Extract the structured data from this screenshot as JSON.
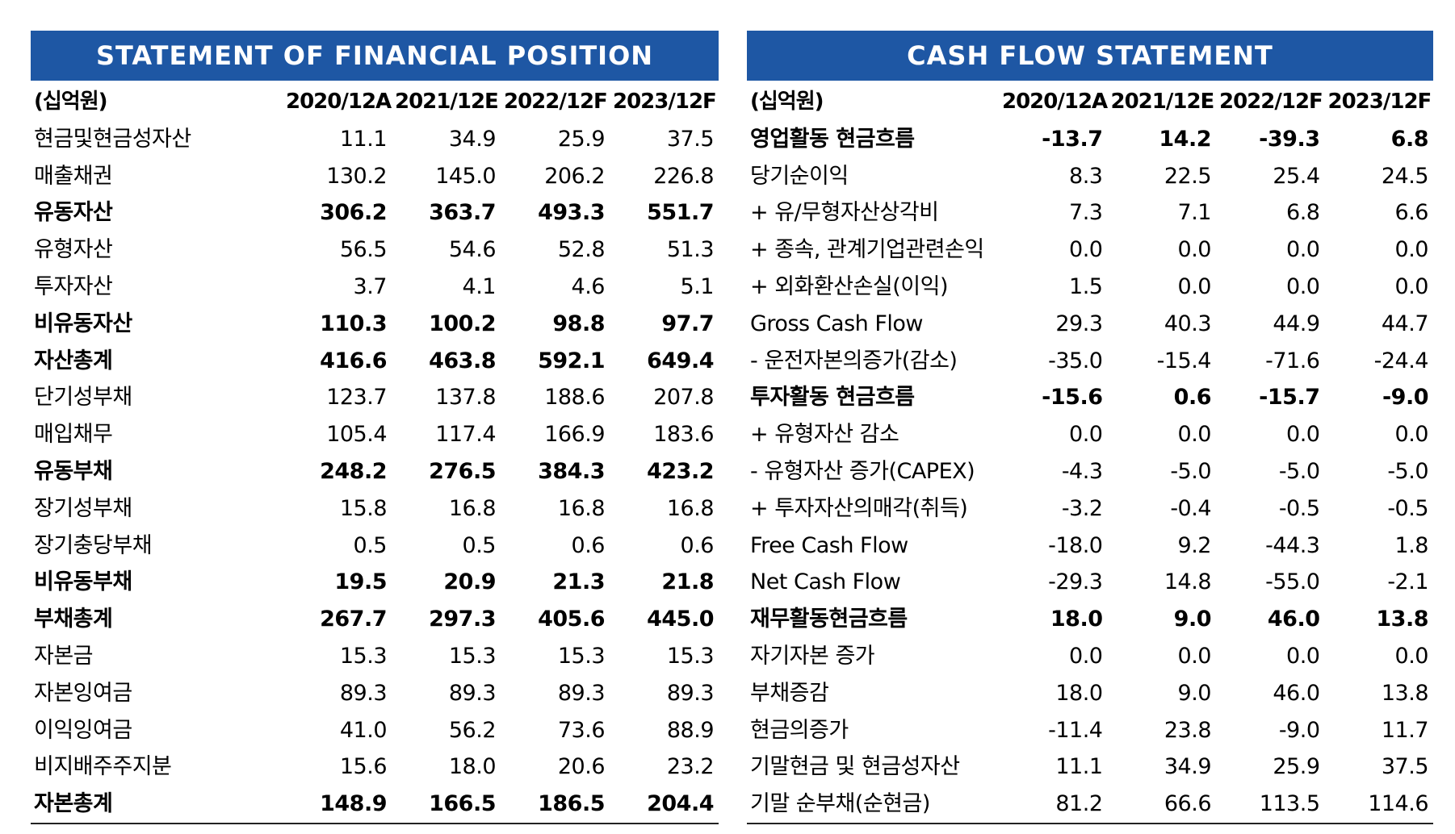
{
  "left": {
    "title": "STATEMENT OF FINANCIAL POSITION",
    "unit": "(십억원)",
    "columns": [
      "2020/12A",
      "2021/12E",
      "2022/12F",
      "2023/12F"
    ],
    "rows": [
      {
        "label": "현금및현금성자산",
        "values": [
          "11.1",
          "34.9",
          "25.9",
          "37.5"
        ],
        "bold": false
      },
      {
        "label": "매출채권",
        "values": [
          "130.2",
          "145.0",
          "206.2",
          "226.8"
        ],
        "bold": false
      },
      {
        "label": "유동자산",
        "values": [
          "306.2",
          "363.7",
          "493.3",
          "551.7"
        ],
        "bold": true
      },
      {
        "label": "유형자산",
        "values": [
          "56.5",
          "54.6",
          "52.8",
          "51.3"
        ],
        "bold": false
      },
      {
        "label": "투자자산",
        "values": [
          "3.7",
          "4.1",
          "4.6",
          "5.1"
        ],
        "bold": false
      },
      {
        "label": "비유동자산",
        "values": [
          "110.3",
          "100.2",
          "98.8",
          "97.7"
        ],
        "bold": true
      },
      {
        "label": "자산총계",
        "values": [
          "416.6",
          "463.8",
          "592.1",
          "649.4"
        ],
        "bold": true
      },
      {
        "label": "단기성부채",
        "values": [
          "123.7",
          "137.8",
          "188.6",
          "207.8"
        ],
        "bold": false
      },
      {
        "label": "매입채무",
        "values": [
          "105.4",
          "117.4",
          "166.9",
          "183.6"
        ],
        "bold": false
      },
      {
        "label": "유동부채",
        "values": [
          "248.2",
          "276.5",
          "384.3",
          "423.2"
        ],
        "bold": true
      },
      {
        "label": "장기성부채",
        "values": [
          "15.8",
          "16.8",
          "16.8",
          "16.8"
        ],
        "bold": false
      },
      {
        "label": "장기충당부채",
        "values": [
          "0.5",
          "0.5",
          "0.6",
          "0.6"
        ],
        "bold": false
      },
      {
        "label": "비유동부채",
        "values": [
          "19.5",
          "20.9",
          "21.3",
          "21.8"
        ],
        "bold": true
      },
      {
        "label": "부채총계",
        "values": [
          "267.7",
          "297.3",
          "405.6",
          "445.0"
        ],
        "bold": true
      },
      {
        "label": "자본금",
        "values": [
          "15.3",
          "15.3",
          "15.3",
          "15.3"
        ],
        "bold": false
      },
      {
        "label": "자본잉여금",
        "values": [
          "89.3",
          "89.3",
          "89.3",
          "89.3"
        ],
        "bold": false
      },
      {
        "label": "이익잉여금",
        "values": [
          "41.0",
          "56.2",
          "73.6",
          "88.9"
        ],
        "bold": false
      },
      {
        "label": "비지배주주지분",
        "values": [
          "15.6",
          "18.0",
          "20.6",
          "23.2"
        ],
        "bold": false
      },
      {
        "label": "자본총계",
        "values": [
          "148.9",
          "166.5",
          "186.5",
          "204.4"
        ],
        "bold": true
      }
    ]
  },
  "right": {
    "title": "CASH FLOW STATEMENT",
    "unit": "(십억원)",
    "columns": [
      "2020/12A",
      "2021/12E",
      "2022/12F",
      "2023/12F"
    ],
    "rows": [
      {
        "label": "영업활동 현금흐름",
        "values": [
          "-13.7",
          "14.2",
          "-39.3",
          "6.8"
        ],
        "bold": true
      },
      {
        "label": "당기순이익",
        "values": [
          "8.3",
          "22.5",
          "25.4",
          "24.5"
        ],
        "bold": false
      },
      {
        "label": "+ 유/무형자산상각비",
        "values": [
          "7.3",
          "7.1",
          "6.8",
          "6.6"
        ],
        "bold": false
      },
      {
        "label": "+ 종속, 관계기업관련손익",
        "values": [
          "0.0",
          "0.0",
          "0.0",
          "0.0"
        ],
        "bold": false
      },
      {
        "label": "+ 외화환산손실(이익)",
        "values": [
          "1.5",
          "0.0",
          "0.0",
          "0.0"
        ],
        "bold": false
      },
      {
        "label": "Gross Cash Flow",
        "values": [
          "29.3",
          "40.3",
          "44.9",
          "44.7"
        ],
        "bold": false
      },
      {
        "label": "- 운전자본의증가(감소)",
        "values": [
          "-35.0",
          "-15.4",
          "-71.6",
          "-24.4"
        ],
        "bold": false
      },
      {
        "label": "투자활동 현금흐름",
        "values": [
          "-15.6",
          "0.6",
          "-15.7",
          "-9.0"
        ],
        "bold": true
      },
      {
        "label": "+ 유형자산 감소",
        "values": [
          "0.0",
          "0.0",
          "0.0",
          "0.0"
        ],
        "bold": false
      },
      {
        "label": "- 유형자산 증가(CAPEX)",
        "values": [
          "-4.3",
          "-5.0",
          "-5.0",
          "-5.0"
        ],
        "bold": false
      },
      {
        "label": "+ 투자자산의매각(취득)",
        "values": [
          "-3.2",
          "-0.4",
          "-0.5",
          "-0.5"
        ],
        "bold": false
      },
      {
        "label": "Free Cash Flow",
        "values": [
          "-18.0",
          "9.2",
          "-44.3",
          "1.8"
        ],
        "bold": false
      },
      {
        "label": "Net Cash Flow",
        "values": [
          "-29.3",
          "14.8",
          "-55.0",
          "-2.1"
        ],
        "bold": false
      },
      {
        "label": "재무활동현금흐름",
        "values": [
          "18.0",
          "9.0",
          "46.0",
          "13.8"
        ],
        "bold": true
      },
      {
        "label": "자기자본 증가",
        "values": [
          "0.0",
          "0.0",
          "0.0",
          "0.0"
        ],
        "bold": false
      },
      {
        "label": "부채증감",
        "values": [
          "18.0",
          "9.0",
          "46.0",
          "13.8"
        ],
        "bold": false
      },
      {
        "label": "현금의증가",
        "values": [
          "-11.4",
          "23.8",
          "-9.0",
          "11.7"
        ],
        "bold": false
      },
      {
        "label": "기말현금 및 현금성자산",
        "values": [
          "11.1",
          "34.9",
          "25.9",
          "37.5"
        ],
        "bold": false
      },
      {
        "label": "기말 순부채(순현금)",
        "values": [
          "81.2",
          "66.6",
          "113.5",
          "114.6"
        ],
        "bold": false
      }
    ]
  }
}
